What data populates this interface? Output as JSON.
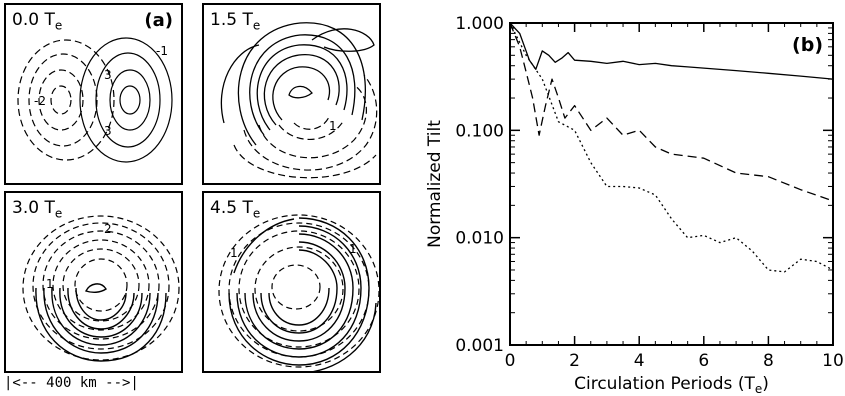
{
  "panel_a": {
    "label": "(a)",
    "subplots": [
      {
        "time": "0.0",
        "unit": "T",
        "sub": "e",
        "contour_labels": [
          "3",
          "-2",
          "3",
          "-1"
        ]
      },
      {
        "time": "1.5",
        "unit": "T",
        "sub": "e",
        "contour_labels": [
          "1"
        ]
      },
      {
        "time": "3.0",
        "unit": "T",
        "sub": "e",
        "contour_labels": [
          "2",
          "1"
        ]
      },
      {
        "time": "4.5",
        "unit": "T",
        "sub": "e",
        "contour_labels": [
          "1",
          "1"
        ]
      }
    ],
    "scale_bar": "|<-- 400 km -->|"
  },
  "chart_data": {
    "type": "line",
    "label": "(b)",
    "xlabel": "Circulation Periods (T",
    "xlabel_sub": "e",
    "xlabel_end": ")",
    "ylabel": "Normalized Tilt",
    "xlim": [
      0,
      10
    ],
    "ylim": [
      0.001,
      1.0
    ],
    "yscale": "log",
    "x_ticks": [
      "0",
      "2",
      "4",
      "6",
      "8",
      "10"
    ],
    "y_ticks": [
      "1.000",
      "0.100",
      "0.010",
      "0.001"
    ],
    "series": [
      {
        "style": "solid",
        "x": [
          0,
          0.3,
          0.6,
          0.8,
          1.0,
          1.2,
          1.4,
          1.6,
          1.8,
          2.0,
          2.5,
          3.0,
          3.5,
          4.0,
          4.5,
          5.0,
          5.5,
          6.0,
          7.0,
          8.0,
          9.0,
          10.0
        ],
        "y": [
          1.0,
          0.8,
          0.45,
          0.37,
          0.55,
          0.5,
          0.43,
          0.47,
          0.53,
          0.45,
          0.44,
          0.42,
          0.44,
          0.41,
          0.42,
          0.4,
          0.39,
          0.38,
          0.36,
          0.34,
          0.32,
          0.3
        ]
      },
      {
        "style": "dashed",
        "x": [
          0,
          0.3,
          0.5,
          0.7,
          0.9,
          1.1,
          1.3,
          1.5,
          1.7,
          2.0,
          2.5,
          3.0,
          3.5,
          4.0,
          4.5,
          5.0,
          6.0,
          7.0,
          8.0,
          9.0,
          10.0
        ],
        "y": [
          1.0,
          0.6,
          0.35,
          0.2,
          0.09,
          0.17,
          0.3,
          0.2,
          0.13,
          0.17,
          0.1,
          0.13,
          0.09,
          0.1,
          0.07,
          0.06,
          0.055,
          0.04,
          0.037,
          0.028,
          0.022
        ]
      },
      {
        "style": "dotted",
        "x": [
          0,
          0.5,
          1.0,
          1.5,
          2.0,
          2.5,
          3.0,
          3.5,
          4.0,
          4.5,
          5.0,
          5.5,
          6.0,
          6.5,
          7.0,
          7.5,
          8.0,
          8.5,
          9.0,
          9.5,
          10.0
        ],
        "y": [
          1.0,
          0.5,
          0.3,
          0.12,
          0.1,
          0.05,
          0.03,
          0.03,
          0.029,
          0.025,
          0.015,
          0.01,
          0.0105,
          0.009,
          0.01,
          0.0075,
          0.005,
          0.0048,
          0.0063,
          0.006,
          0.005
        ]
      }
    ]
  }
}
